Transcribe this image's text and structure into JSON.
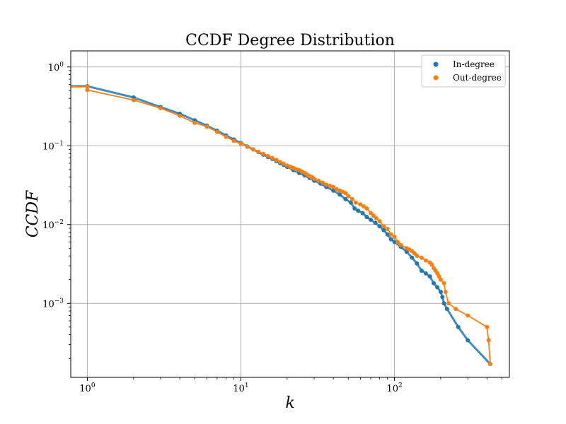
{
  "chart_data": {
    "type": "scatter",
    "title": "CCDF Degree Distribution",
    "xlabel": "k",
    "ylabel": "CCDF",
    "xscale": "log",
    "yscale": "log",
    "xlim": [
      0.78,
      560
    ],
    "ylim": [
      0.000115,
      1.6
    ],
    "grid": true,
    "legend_position": "top-right",
    "x_ticks": [
      {
        "base": "10",
        "exp": "0",
        "value": 1
      },
      {
        "base": "10",
        "exp": "1",
        "value": 10
      },
      {
        "base": "10",
        "exp": "2",
        "value": 100
      }
    ],
    "y_ticks": [
      {
        "base": "10",
        "exp": "0",
        "value": 1
      },
      {
        "base": "10",
        "exp": "−1",
        "value": 0.1
      },
      {
        "base": "10",
        "exp": "−2",
        "value": 0.01
      },
      {
        "base": "10",
        "exp": "−3",
        "value": 0.001
      }
    ],
    "series": [
      {
        "name": "In-degree",
        "color": "#1f77b4",
        "points": [
          [
            1,
            0.57
          ],
          [
            2,
            0.41
          ],
          [
            3,
            0.31
          ],
          [
            4,
            0.255
          ],
          [
            5,
            0.21
          ],
          [
            6,
            0.18
          ],
          [
            7,
            0.155
          ],
          [
            8,
            0.135
          ],
          [
            9,
            0.12
          ],
          [
            10,
            0.108
          ],
          [
            11,
            0.098
          ],
          [
            12,
            0.09
          ],
          [
            13,
            0.083
          ],
          [
            14,
            0.077
          ],
          [
            15,
            0.072
          ],
          [
            16,
            0.068
          ],
          [
            17,
            0.064
          ],
          [
            18,
            0.06
          ],
          [
            19,
            0.057
          ],
          [
            20,
            0.054
          ],
          [
            22,
            0.049
          ],
          [
            24,
            0.045
          ],
          [
            26,
            0.042
          ],
          [
            28,
            0.039
          ],
          [
            30,
            0.036
          ],
          [
            33,
            0.033
          ],
          [
            36,
            0.03
          ],
          [
            40,
            0.027
          ],
          [
            44,
            0.024
          ],
          [
            48,
            0.021
          ],
          [
            52,
            0.019
          ],
          [
            55,
            0.016
          ],
          [
            58,
            0.015
          ],
          [
            62,
            0.014
          ],
          [
            66,
            0.0125
          ],
          [
            70,
            0.0115
          ],
          [
            75,
            0.0105
          ],
          [
            80,
            0.0095
          ],
          [
            85,
            0.0085
          ],
          [
            90,
            0.0075
          ],
          [
            95,
            0.0065
          ],
          [
            100,
            0.006
          ],
          [
            110,
            0.0052
          ],
          [
            120,
            0.0045
          ],
          [
            130,
            0.0038
          ],
          [
            140,
            0.0032
          ],
          [
            150,
            0.0026
          ],
          [
            160,
            0.0024
          ],
          [
            170,
            0.0022
          ],
          [
            180,
            0.0018
          ],
          [
            190,
            0.0016
          ],
          [
            200,
            0.0014
          ],
          [
            205,
            0.0012
          ],
          [
            210,
            0.001
          ],
          [
            220,
            0.00085
          ],
          [
            260,
            0.0005
          ],
          [
            300,
            0.00034
          ],
          [
            420,
            0.00017
          ]
        ]
      },
      {
        "name": "Out-degree",
        "color": "#ff7f0e",
        "points": [
          [
            1,
            0.56
          ],
          [
            1,
            0.51
          ],
          [
            2,
            0.38
          ],
          [
            3,
            0.3
          ],
          [
            4,
            0.24
          ],
          [
            5,
            0.195
          ],
          [
            6,
            0.175
          ],
          [
            7,
            0.15
          ],
          [
            8,
            0.13
          ],
          [
            9,
            0.115
          ],
          [
            10,
            0.106
          ],
          [
            11,
            0.097
          ],
          [
            12,
            0.09
          ],
          [
            13,
            0.084
          ],
          [
            14,
            0.079
          ],
          [
            15,
            0.074
          ],
          [
            16,
            0.07
          ],
          [
            17,
            0.066
          ],
          [
            18,
            0.062
          ],
          [
            19,
            0.059
          ],
          [
            20,
            0.056
          ],
          [
            21,
            0.054
          ],
          [
            22,
            0.052
          ],
          [
            23,
            0.05
          ],
          [
            24,
            0.049
          ],
          [
            25,
            0.047
          ],
          [
            26,
            0.045
          ],
          [
            27,
            0.043
          ],
          [
            28,
            0.041
          ],
          [
            29,
            0.04
          ],
          [
            30,
            0.038
          ],
          [
            32,
            0.036
          ],
          [
            34,
            0.034
          ],
          [
            36,
            0.032
          ],
          [
            38,
            0.031
          ],
          [
            40,
            0.03
          ],
          [
            42,
            0.028
          ],
          [
            44,
            0.027
          ],
          [
            46,
            0.026
          ],
          [
            48,
            0.025
          ],
          [
            50,
            0.023
          ],
          [
            53,
            0.021
          ],
          [
            56,
            0.019
          ],
          [
            60,
            0.018
          ],
          [
            63,
            0.017
          ],
          [
            66,
            0.016
          ],
          [
            70,
            0.014
          ],
          [
            73,
            0.013
          ],
          [
            76,
            0.012
          ],
          [
            80,
            0.011
          ],
          [
            85,
            0.0095
          ],
          [
            90,
            0.0088
          ],
          [
            95,
            0.0075
          ],
          [
            100,
            0.007
          ],
          [
            105,
            0.006
          ],
          [
            110,
            0.0055
          ],
          [
            120,
            0.005
          ],
          [
            125,
            0.0048
          ],
          [
            130,
            0.0046
          ],
          [
            135,
            0.0043
          ],
          [
            140,
            0.004
          ],
          [
            150,
            0.0038
          ],
          [
            160,
            0.0035
          ],
          [
            170,
            0.0033
          ],
          [
            175,
            0.0031
          ],
          [
            180,
            0.0028
          ],
          [
            185,
            0.0026
          ],
          [
            190,
            0.0024
          ],
          [
            195,
            0.0022
          ],
          [
            200,
            0.002
          ],
          [
            210,
            0.0018
          ],
          [
            215,
            0.0014
          ],
          [
            225,
            0.001
          ],
          [
            250,
            0.00085
          ],
          [
            300,
            0.0007
          ],
          [
            400,
            0.0005
          ],
          [
            410,
            0.00034
          ],
          [
            420,
            0.00017
          ]
        ]
      }
    ]
  }
}
